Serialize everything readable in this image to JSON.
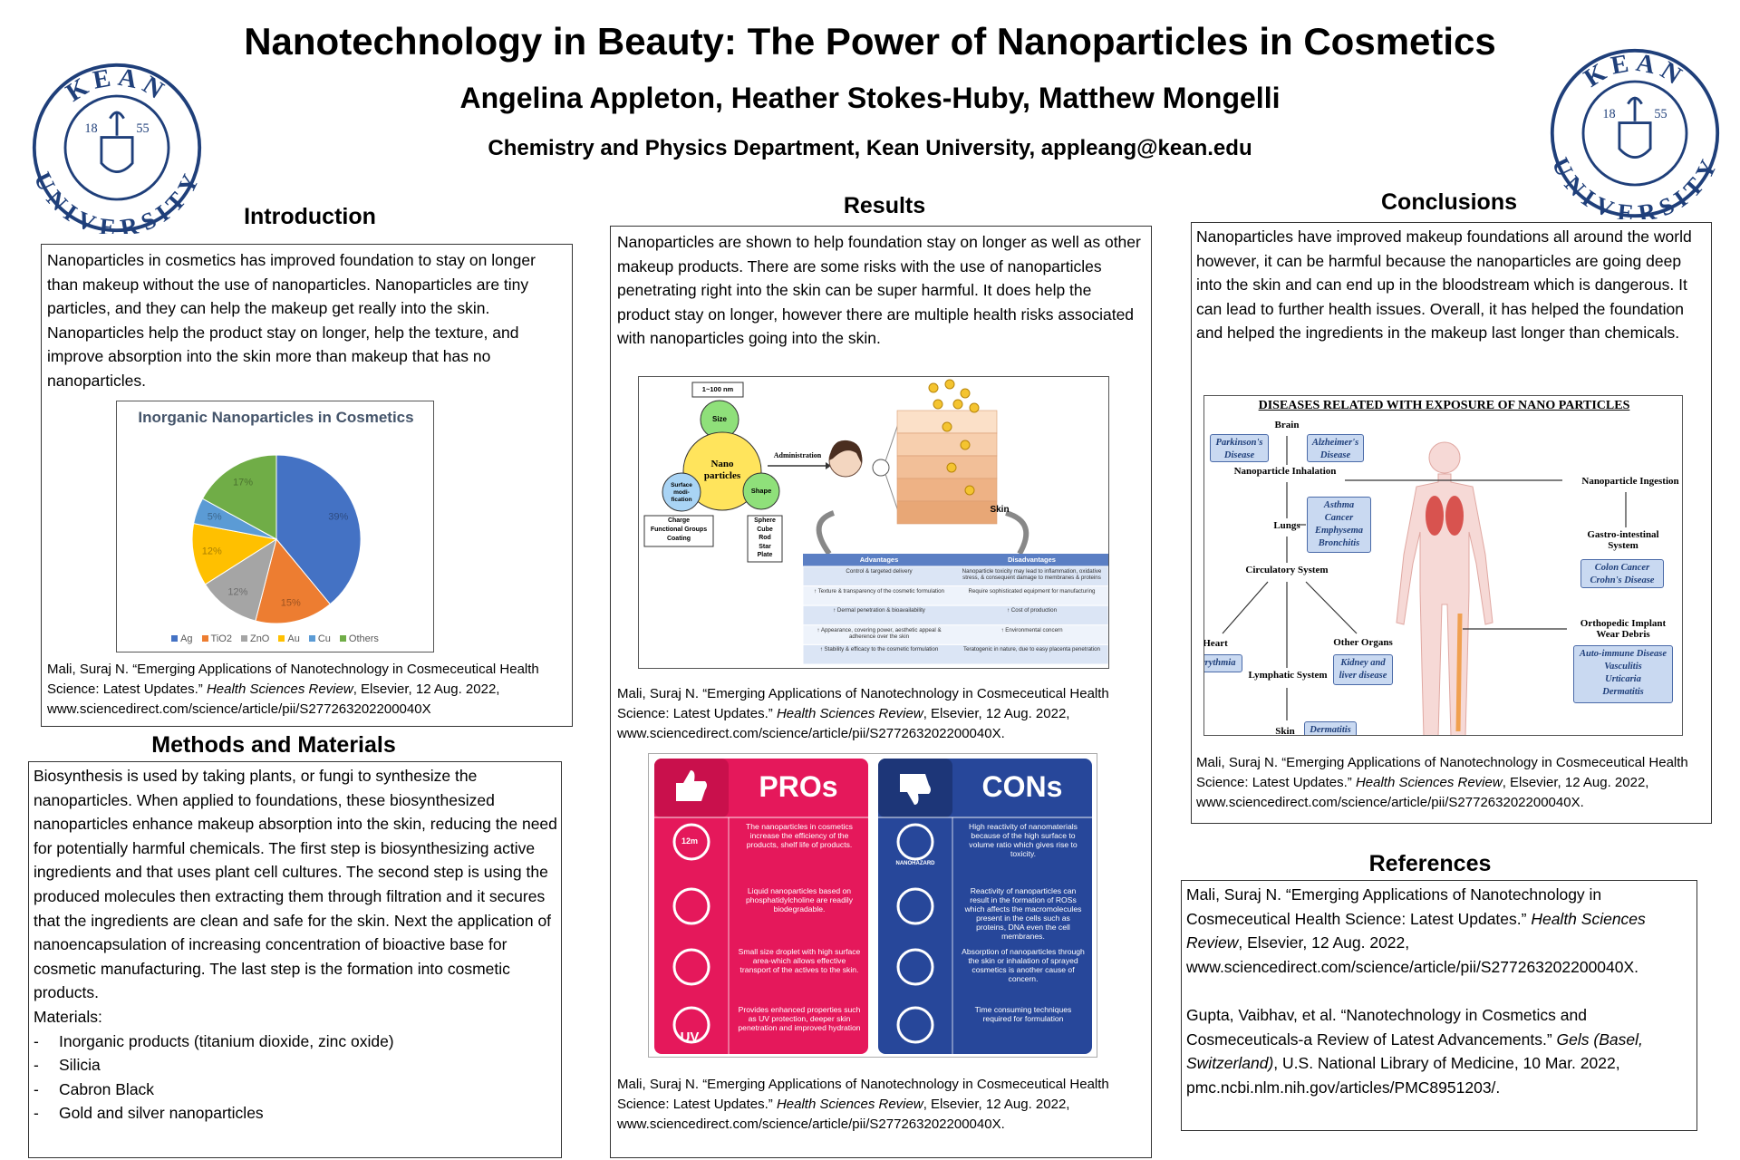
{
  "header": {
    "title": "Nanotechnology in Beauty: The Power of Nanoparticles in Cosmetics",
    "authors": "Angelina Appleton, Heather Stokes-Huby, Matthew Mongelli",
    "affiliation": "Chemistry and Physics Department, Kean University, appleang@kean.edu",
    "logo": {
      "top": "KEAN",
      "bottom": "UNIVERSITY",
      "year_left": "18",
      "year_right": "55"
    }
  },
  "introduction": {
    "heading": "Introduction",
    "text": "Nanoparticles in cosmetics has improved foundation to stay on longer than makeup without the use of nanoparticles. Nanoparticles are tiny particles, and they can help the makeup get really into the skin. Nanoparticles help the product stay on longer, help the texture, and improve absorption into the skin more than makeup that has no nanoparticles.",
    "citation": {
      "before": "Mali, Suraj N. “Emerging Applications of Nanotechnology in Cosmeceutical Health Science: Latest Updates.” ",
      "journal": "Health Sciences Review",
      "after": ", Elsevier, 12 Aug. 2022, www.sciencedirect.com/science/article/pii/S277263202200040X"
    }
  },
  "chart_data": {
    "type": "pie",
    "title": "Inorganic Nanoparticles in Cosmetics",
    "categories": [
      "Ag",
      "TiO2",
      "ZnO",
      "Au",
      "Cu",
      "Others"
    ],
    "values": [
      39,
      15,
      12,
      12,
      5,
      17
    ],
    "value_labels": [
      "39%",
      "15%",
      "12%",
      "12%",
      "5%",
      "17%"
    ],
    "colors": [
      "#4472c4",
      "#ed7d31",
      "#a5a5a5",
      "#ffc000",
      "#5b9bd5",
      "#70ad47"
    ],
    "legend": "bottom"
  },
  "methods": {
    "heading": "Methods and Materials",
    "text": "Biosynthesis is used by taking plants, or fungi to synthesize the nanoparticles. When applied to foundations, these biosynthesized nanoparticles enhance makeup absorption into the skin, reducing the need for potentially harmful chemicals. The first step is biosynthesizing active ingredients and that uses plant cell cultures. The second step is using the produced molecules then extracting them through filtration and it secures that the ingredients are clean and safe for the skin. Next the application of nanoencapsulation of increasing concentration of bioactive base for cosmetic manufacturing. The last step is the formation into cosmetic products.",
    "materials_label": "Materials:",
    "materials": [
      "Inorganic products (titanium dioxide, zinc oxide)",
      "Silicia",
      "Cabron Black",
      "Gold and silver nanoparticles"
    ]
  },
  "results": {
    "heading": "Results",
    "text": "Nanoparticles are shown to help foundation stay on longer as well as other makeup products. There are some risks with the use of nanoparticles penetrating right into the skin can be super harmful. It does help the product stay on longer, however there are multiple health risks associated with nanoparticles going into the skin.",
    "diagram": {
      "size_range": "1~100 nm",
      "size": "Size",
      "core": "Nano particles",
      "surface": "Surface modi-fication",
      "shape": "Shape",
      "administration": "Administration",
      "skin": "Skin",
      "surface_items": [
        "Charge",
        "Functional Groups",
        "Coating"
      ],
      "shape_items": [
        "Sphere",
        "Cube",
        "Rod",
        "Star",
        "Plate"
      ],
      "table_headers": [
        "Advantages",
        "Disadvantages"
      ],
      "table_rows": [
        [
          "Control & targeted delivery",
          "Nanoparticle toxicity may lead to inflammation, oxidative stress, & consequent damage to membranes & proteins"
        ],
        [
          "↑ Texture & transparency of the cosmetic formulation",
          "Require sophisticated equipment for manufacturing"
        ],
        [
          "↑ Dermal penetration & bioavailability",
          "↑ Cost of production"
        ],
        [
          "↑ Appearance, covering power, aesthetic appeal & adherence over the skin",
          "↑ Environmental concern"
        ],
        [
          "↑ Stability & efficacy to the cosmetic formulation",
          "Teratogenic in nature, due to easy placenta penetration"
        ]
      ]
    },
    "citation_1": {
      "before": "Mali, Suraj N. “Emerging Applications of Nanotechnology in Cosmeceutical Health Science: Latest Updates.” ",
      "journal": "Health Sciences Review",
      "after": ", Elsevier, 12 Aug. 2022, www.sciencedirect.com/science/article/pii/S277263202200040X."
    },
    "pros_cons": {
      "pros_title": "PROs",
      "cons_title": "CONs",
      "pros": [
        "The nanoparticles in cosmetics increase the efficiency of the products, shelf life of products.",
        "Liquid nanoparticles based on phosphatidylcholine are readily biodegradable.",
        "Small size droplet with high surface area-which allows effective transport of the actives to the skin.",
        "Provides enhanced properties such as UV protection, deeper skin penetration and improved hydration"
      ],
      "cons": [
        "High reactivity of nanomaterials because of the high surface to volume ratio which gives rise to toxicity.",
        "Reactivity of nanoparticles can result in the formation of ROSs which affects the macromolecules present in the cells such as proteins, DNA even the cell membranes.",
        "Absorption of nanoparticles through the skin or inhalation of sprayed cosmetics is another cause of concern.",
        "Time consuming techniques required for formulation"
      ],
      "icon_shelf": "12m",
      "icon_uv": "UV",
      "icon_hazard": "NANOHAZARD"
    },
    "citation_2": {
      "before": "Mali, Suraj N. “Emerging Applications of Nanotechnology in Cosmeceutical Health Science: Latest Updates.” ",
      "journal": "Health Sciences Review",
      "after": ", Elsevier, 12 Aug. 2022, www.sciencedirect.com/science/article/pii/S277263202200040X."
    }
  },
  "conclusions": {
    "heading": "Conclusions",
    "text": "Nanoparticles have improved makeup foundations all around the world however, it can be harmful because the nanoparticles are going deep into the skin and can end up in the bloodstream which is dangerous. It can lead to further health issues. Overall, it has helped the foundation and helped the ingredients in the makeup last longer than chemicals.",
    "diseases": {
      "title": "DISEASES RELATED WITH EXPOSURE OF NANO PARTICLES",
      "nodes": [
        "Brain",
        "Nanoparticle Inhalation",
        "Nanoparticle Ingestion",
        "Lungs",
        "Gastro-intestinal System",
        "Circulatory System",
        "Heart",
        "Other Organs",
        "Orthopedic Implant Wear Debris",
        "Lymphatic System",
        "Skin"
      ],
      "boxes": [
        [
          "Parkinson's",
          "Disease"
        ],
        [
          "Alzheimer's",
          "Disease"
        ],
        [
          "Asthma",
          "Cancer",
          "Emphysema",
          "Bronchitis"
        ],
        [
          "Colon Cancer",
          "Crohn's Disease"
        ],
        [
          "Arrythmia"
        ],
        [
          "Kidney and",
          "liver disease"
        ],
        [
          "Auto-immune Disease",
          "Vasculitis",
          "Urticaria",
          "Dermatitis"
        ],
        [
          "Dermatitis"
        ]
      ]
    },
    "citation": {
      "before": "Mali, Suraj N. “Emerging Applications of Nanotechnology in Cosmeceutical Health Science: Latest Updates.” ",
      "journal": "Health Sciences Review",
      "after": ", Elsevier, 12 Aug. 2022, www.sciencedirect.com/science/article/pii/S277263202200040X."
    }
  },
  "references": {
    "heading": "References",
    "items": [
      {
        "before": "Mali, Suraj N. “Emerging Applications of Nanotechnology in Cosmeceutical Health Science: Latest Updates.” ",
        "journal": "Health Sciences Review",
        "after": ", Elsevier, 12 Aug. 2022, www.sciencedirect.com/science/article/pii/S277263202200040X."
      },
      {
        "before": "Gupta, Vaibhav, et al. “Nanotechnology in Cosmetics and Cosmeceuticals-a Review of Latest Advancements.” ",
        "journal": "Gels (Basel, Switzerland)",
        "after": ", U.S. National Library of Medicine, 10 Mar. 2022, pmc.ncbi.nlm.nih.gov/articles/PMC8951203/."
      }
    ]
  }
}
